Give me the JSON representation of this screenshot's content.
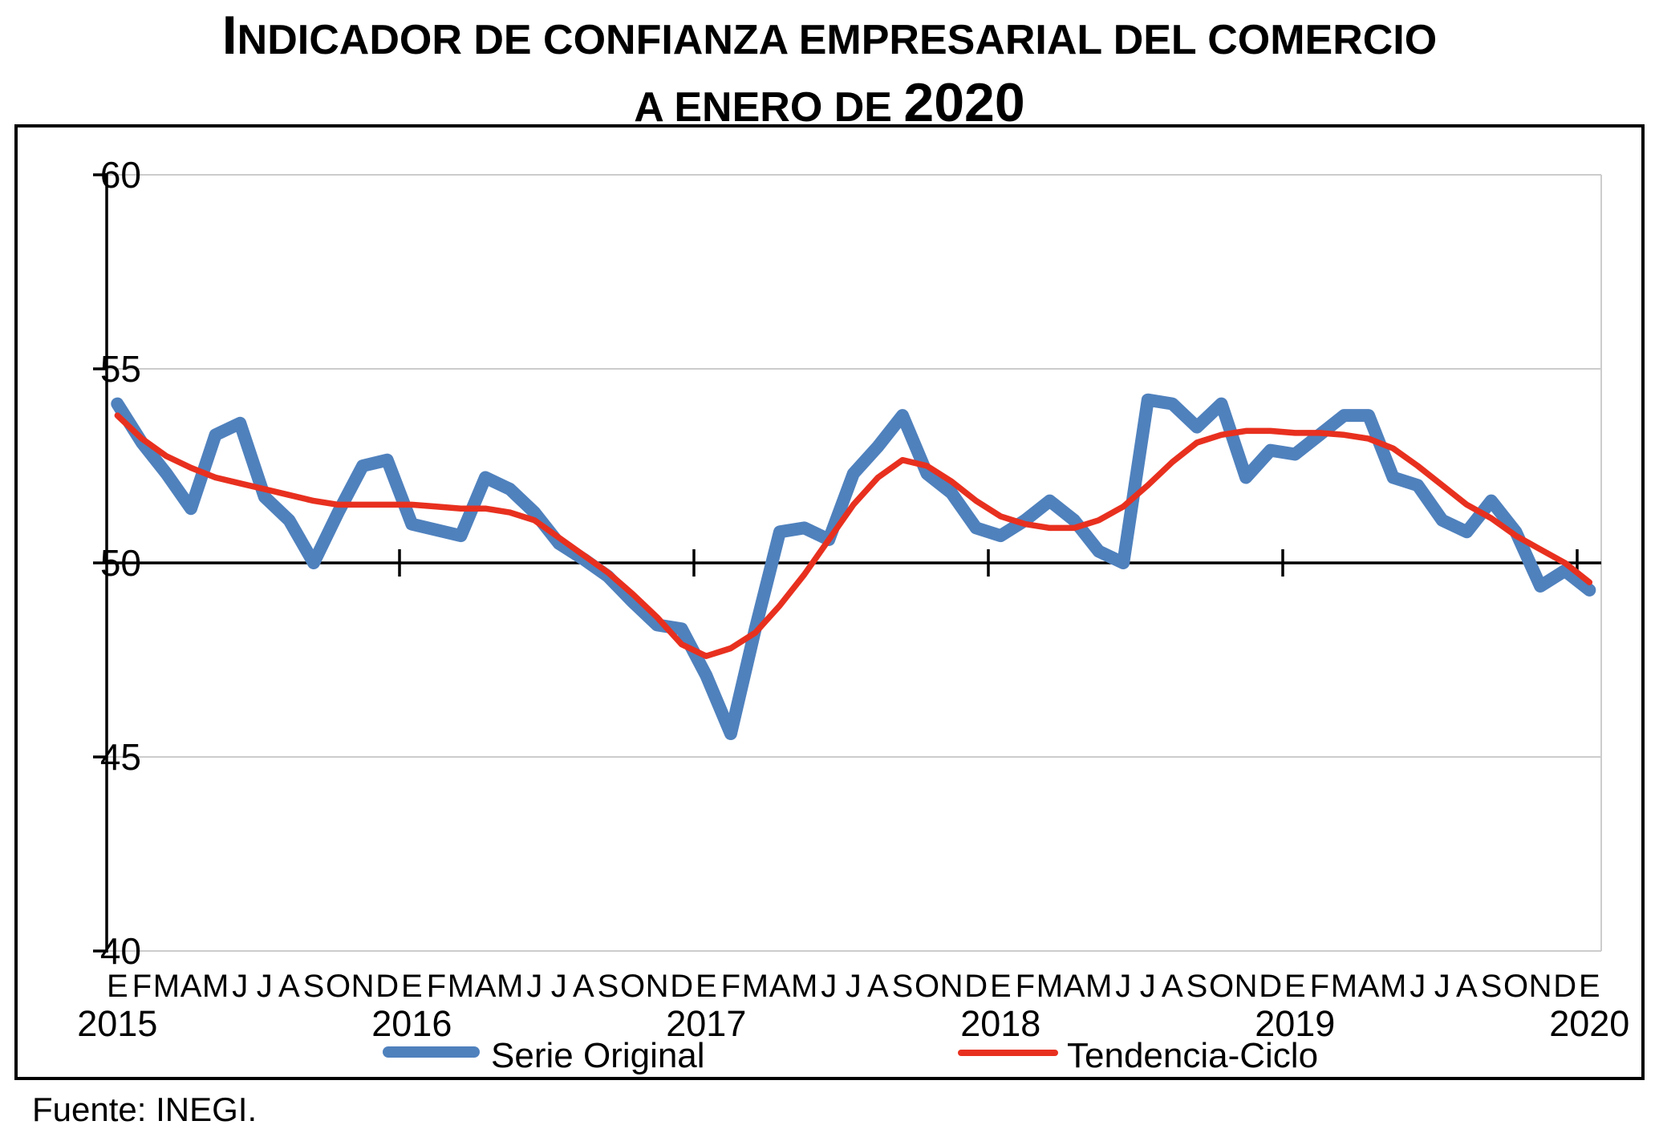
{
  "title": {
    "line1_initial": "I",
    "line1_rest": "NDICADOR DE CONFIANZA EMPRESARIAL DEL COMERCIO",
    "line2_text": "A ENERO DE ",
    "line2_year": "2020"
  },
  "source": "Fuente: INEGI.",
  "legend": {
    "serie_original": "Serie Original",
    "tendencia_ciclo": "Tendencia-Ciclo"
  },
  "chart_data": {
    "type": "line",
    "title": "Indicador de confianza empresarial del comercio a enero de 2020",
    "xlabel": "",
    "ylabel": "",
    "ylim": [
      40,
      60
    ],
    "yticks": [
      40,
      45,
      50,
      55,
      60
    ],
    "x_axis_cross_value": 50,
    "grid": true,
    "legend_position": "bottom-inside",
    "month_letters": [
      "E",
      "F",
      "M",
      "A",
      "M",
      "J",
      "J",
      "A",
      "S",
      "O",
      "N",
      "D"
    ],
    "years": [
      "2015",
      "2016",
      "2017",
      "2018",
      "2019",
      "2020"
    ],
    "colors": {
      "serie_original": "#4f81bd",
      "tendencia_ciclo": "#e8301f",
      "gridline": "#cccccc",
      "axis": "#000000"
    },
    "series": [
      {
        "name": "Serie Original",
        "color": "#4f81bd",
        "values": [
          54.1,
          53.1,
          52.3,
          51.4,
          53.3,
          53.6,
          51.7,
          51.1,
          50.0,
          51.3,
          52.5,
          52.65,
          51.0,
          50.85,
          50.7,
          52.2,
          51.9,
          51.3,
          50.5,
          50.1,
          49.65,
          49.0,
          48.4,
          48.3,
          47.1,
          45.6,
          48.3,
          50.8,
          50.9,
          50.6,
          52.3,
          53.0,
          53.8,
          52.3,
          51.8,
          50.9,
          50.7,
          51.1,
          51.6,
          51.1,
          50.3,
          50.0,
          54.2,
          54.1,
          53.5,
          54.1,
          52.2,
          52.9,
          52.8,
          53.3,
          53.8,
          53.8,
          52.2,
          52.0,
          51.1,
          50.8,
          51.6,
          50.8,
          49.4,
          49.8,
          49.3
        ]
      },
      {
        "name": "Tendencia-Ciclo",
        "color": "#e8301f",
        "values": [
          53.8,
          53.2,
          52.75,
          52.45,
          52.2,
          52.05,
          51.9,
          51.75,
          51.6,
          51.5,
          51.5,
          51.5,
          51.5,
          51.45,
          51.4,
          51.4,
          51.3,
          51.1,
          50.65,
          50.2,
          49.75,
          49.2,
          48.6,
          47.9,
          47.6,
          47.8,
          48.2,
          48.9,
          49.7,
          50.6,
          51.5,
          52.2,
          52.65,
          52.5,
          52.1,
          51.6,
          51.2,
          51.0,
          50.9,
          50.9,
          51.1,
          51.45,
          52.0,
          52.6,
          53.1,
          53.3,
          53.4,
          53.4,
          53.35,
          53.35,
          53.3,
          53.2,
          52.95,
          52.5,
          52.0,
          51.5,
          51.15,
          50.7,
          50.35,
          50.0,
          49.5
        ]
      }
    ]
  }
}
